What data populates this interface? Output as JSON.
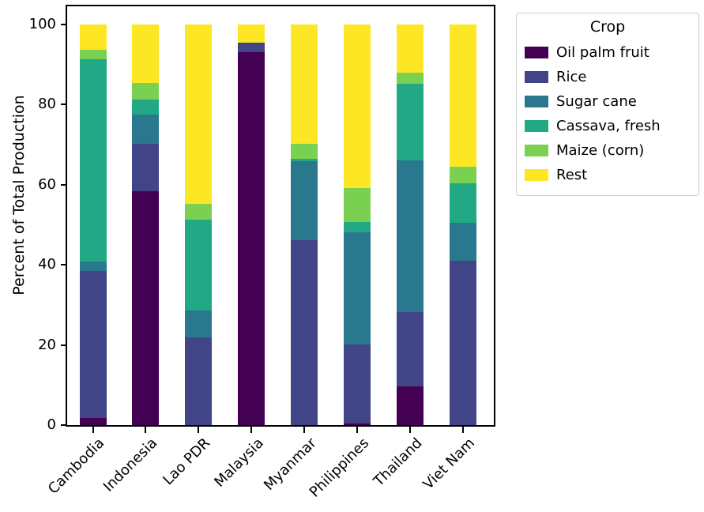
{
  "chart_data": {
    "type": "bar",
    "stacked": true,
    "title": "",
    "xlabel": "",
    "ylabel": "Percent of Total Production",
    "ylim": [
      0,
      104.5
    ],
    "yticks": [
      0,
      20,
      40,
      60,
      80,
      100
    ],
    "grid": false,
    "legend": {
      "title": "Crop",
      "position": "outside upper right"
    },
    "categories": [
      "Cambodia",
      "Indonesia",
      "Lao PDR",
      "Malaysia",
      "Myanmar",
      "Philippines",
      "Thailand",
      "Viet Nam"
    ],
    "series": [
      {
        "name": "Oil palm fruit",
        "color": "#440154",
        "values": [
          1.8,
          58.3,
          0,
          93.0,
          0,
          0.5,
          9.7,
          0
        ]
      },
      {
        "name": "Rice",
        "color": "#414487",
        "values": [
          36.6,
          12.0,
          21.8,
          2.4,
          46.2,
          19.6,
          18.5,
          41.1
        ]
      },
      {
        "name": "Sugar cane",
        "color": "#2a788e",
        "values": [
          2.5,
          7.2,
          6.8,
          0,
          19.6,
          28.0,
          37.8,
          9.4
        ]
      },
      {
        "name": "Cassava, fresh",
        "color": "#22a884",
        "values": [
          50.4,
          3.8,
          22.6,
          0,
          0.7,
          2.5,
          19.1,
          9.8
        ]
      },
      {
        "name": "Maize (corn)",
        "color": "#7ad151",
        "values": [
          2.3,
          4.0,
          4.0,
          0,
          3.7,
          8.5,
          2.9,
          4.2
        ]
      },
      {
        "name": "Rest",
        "color": "#fde725",
        "values": [
          6.4,
          14.7,
          44.8,
          4.6,
          29.8,
          40.9,
          12.0,
          35.5
        ]
      }
    ]
  }
}
